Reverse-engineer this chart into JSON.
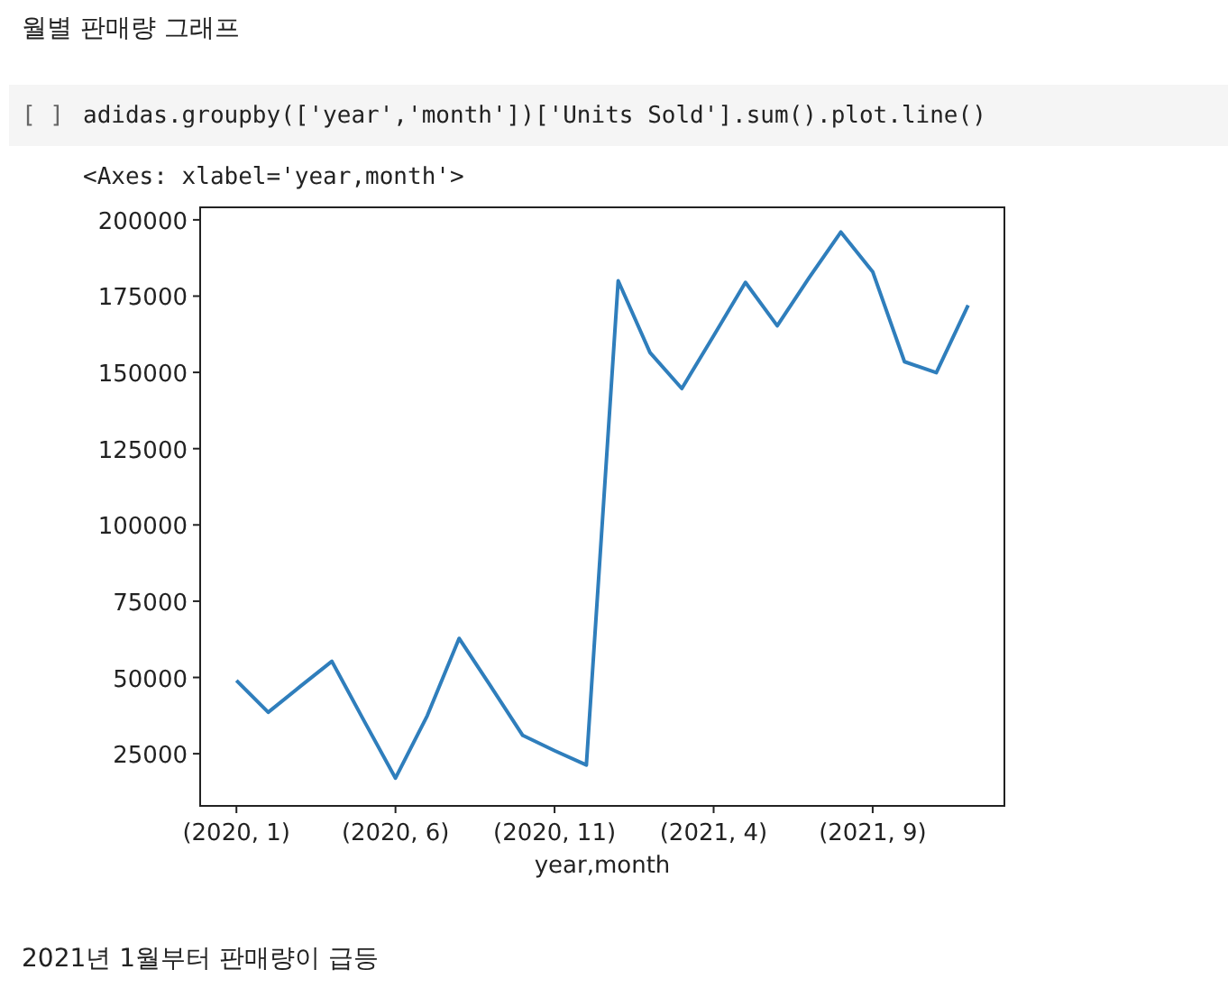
{
  "chart_data": {
    "type": "line",
    "title": "월별 판매량 그래프",
    "xlabel": "year,month",
    "categories": [
      "(2020, 1)",
      null,
      null,
      null,
      null,
      "(2020, 6)",
      null,
      null,
      null,
      null,
      "(2020, 11)",
      null,
      null,
      null,
      null,
      "(2021, 4)",
      null,
      null,
      null,
      null,
      "(2021, 9)",
      null,
      null,
      null
    ],
    "values": [
      49000,
      38600,
      47000,
      55300,
      36000,
      17000,
      37500,
      62800,
      47000,
      31000,
      26000,
      21300,
      180000,
      156500,
      144700,
      162000,
      179500,
      165300,
      181000,
      196000,
      183000,
      153500,
      149900,
      172000
    ],
    "color": "#2f7ebc",
    "ylim": [
      7900,
      204100
    ],
    "yticks": [
      25000,
      50000,
      75000,
      100000,
      125000,
      150000,
      175000,
      200000
    ],
    "annotations": [
      "[ ]",
      "adidas.groupby(['year','month'])['Units Sold'].sum().plot.line()",
      "<Axes: xlabel='year,month'>",
      "2021년 1월부터 판매량이 급등"
    ]
  }
}
